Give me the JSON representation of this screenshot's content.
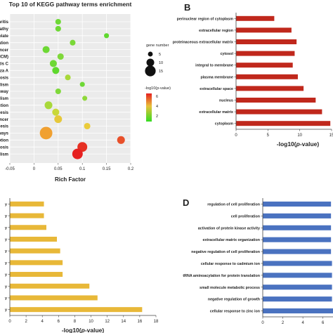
{
  "chart_data": [
    {
      "panel": "",
      "type": "scatter",
      "title": "Top 10 of KEGG pathway terms enrichment",
      "xlabel": "Rich Factor",
      "xlim": [
        -0.05,
        0.2
      ],
      "xticks": [
        "-0.05",
        "0",
        "0.05",
        "0.1",
        "0.15",
        "0.2"
      ],
      "xtick_values": [
        -0.05,
        0,
        0.05,
        0.1,
        0.15,
        0.2
      ],
      "categories": [
        "arthritis",
        "vopathy",
        "ay folate",
        "radation",
        "n cancer",
        "y (HCM)",
        "patitis C",
        "uenza A",
        "smosis",
        "abolism",
        "pathway",
        "abolism",
        "eraction",
        "genesis",
        "r cancer",
        "nthesis",
        "athways",
        "vorption",
        "matosis",
        "pholism"
      ],
      "points": [
        {
          "x": 0.05,
          "size": 5,
          "color": "#6ed836"
        },
        {
          "x": 0.05,
          "size": 5,
          "color": "#6ed836"
        },
        {
          "x": 0.15,
          "size": 4,
          "color": "#5fd82e"
        },
        {
          "x": 0.08,
          "size": 5,
          "color": "#7ad838"
        },
        {
          "x": 0.025,
          "size": 7,
          "color": "#6dd834"
        },
        {
          "x": 0.055,
          "size": 6,
          "color": "#7fd83a"
        },
        {
          "x": 0.04,
          "size": 7,
          "color": "#6ed836"
        },
        {
          "x": 0.045,
          "size": 7,
          "color": "#5fd82e"
        },
        {
          "x": 0.07,
          "size": 5,
          "color": "#a8d83a"
        },
        {
          "x": 0.1,
          "size": 4,
          "color": "#6ed836"
        },
        {
          "x": 0.05,
          "size": 5,
          "color": "#7fd83a"
        },
        {
          "x": 0.105,
          "size": 4,
          "color": "#8fd83a"
        },
        {
          "x": 0.03,
          "size": 8,
          "color": "#a8d83a"
        },
        {
          "x": 0.045,
          "size": 7,
          "color": "#c9d83a"
        },
        {
          "x": 0.05,
          "size": 8,
          "color": "#e6c83a"
        },
        {
          "x": 0.11,
          "size": 6,
          "color": "#eacb3a"
        },
        {
          "x": 0.025,
          "size": 15,
          "color": "#f0a030"
        },
        {
          "x": 0.18,
          "size": 8,
          "color": "#e8502a"
        },
        {
          "x": 0.1,
          "size": 11,
          "color": "#e63023"
        },
        {
          "x": 0.09,
          "size": 12,
          "color": "#e62020"
        }
      ],
      "legend": {
        "size_title": "gene number",
        "sizes": [
          5,
          10,
          15
        ],
        "color_title": "-log10(p-value)",
        "color_ticks": [
          "6",
          "4",
          "2"
        ],
        "color_low": "#33dd22",
        "color_high": "#e62020"
      }
    },
    {
      "panel": "B",
      "type": "bar",
      "orientation": "horizontal",
      "xlabel_prefix": "-log10(",
      "xlabel_italic": "p",
      "xlabel_suffix": "-value)",
      "xlim": [
        0,
        15
      ],
      "xticks": [
        "0",
        "5",
        "10",
        "15"
      ],
      "xtick_values": [
        0,
        5,
        10,
        15
      ],
      "color": "#c0281c",
      "categories": [
        "perinuclear region of cytoplasm",
        "extracellular region",
        "proteinaceous extracellular matrix",
        "cytosol",
        "integral to membrane",
        "plasma membrane",
        "extracellular space",
        "nucleus",
        "extracellular matrix",
        "cytoplasm"
      ],
      "values": [
        6.0,
        8.7,
        9.5,
        9.2,
        8.9,
        9.7,
        10.6,
        12.5,
        13.5,
        14.8
      ]
    },
    {
      "panel": "",
      "type": "bar",
      "orientation": "horizontal",
      "xlabel_prefix": "-log10(",
      "xlabel_italic": "p",
      "xlabel_suffix": "-value)",
      "xlim": [
        0,
        18
      ],
      "xticks": [
        "0",
        "2",
        "4",
        "6",
        "8",
        "10",
        "12",
        "14",
        "16",
        "18"
      ],
      "xtick_values": [
        0,
        2,
        4,
        6,
        8,
        10,
        12,
        14,
        16,
        18
      ],
      "color": "#e8b838",
      "categories": [
        "y",
        "y",
        "y",
        "y",
        "y",
        "y",
        "y",
        "y",
        "y",
        "y"
      ],
      "values": [
        4.2,
        4.2,
        4.5,
        5.8,
        6.2,
        6.5,
        6.5,
        9.8,
        10.8,
        16.3
      ]
    },
    {
      "panel": "D",
      "type": "bar",
      "orientation": "horizontal",
      "xlim": [
        0,
        7
      ],
      "xticks": [
        "0",
        "2",
        "4",
        "6"
      ],
      "xtick_values": [
        0,
        2,
        4,
        6
      ],
      "color": "#4a72c0",
      "categories": [
        "regulation of cell proliferation",
        "cell proliferation",
        "activation of protein kinase activity",
        "extracellular matrix organization",
        "negative regulation of cell proliferation",
        "cellular response to cadmium ion",
        "tRNA aminoacylation for protein translation",
        "small molecule metabolic process",
        "negative regulation of growth",
        "cellular response to zinc ion"
      ],
      "values": [
        6.8,
        6.8,
        6.8,
        6.8,
        6.8,
        6.9,
        6.9,
        6.9,
        6.9,
        7.0
      ]
    }
  ]
}
